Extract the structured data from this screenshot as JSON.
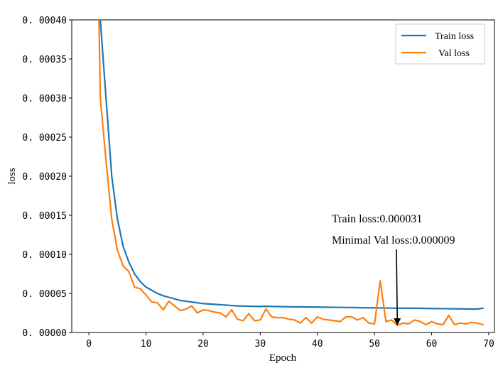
{
  "chart_data": {
    "type": "line",
    "xlabel": "Epoch",
    "ylabel": "loss",
    "xlim": [
      -3,
      71
    ],
    "ylim": [
      0,
      0.0004
    ],
    "x_ticks": [
      0,
      10,
      20,
      30,
      40,
      50,
      60,
      70
    ],
    "x_tick_labels": [
      "0",
      "10",
      "20",
      "30",
      "40",
      "50",
      "60",
      "70"
    ],
    "y_ticks": [
      0,
      5e-05,
      0.0001,
      0.00015,
      0.0002,
      0.00025,
      0.0003,
      0.00035,
      0.0004
    ],
    "y_tick_labels": [
      "0. 00000",
      "0. 00005",
      "0. 00010",
      "0. 00015",
      "0. 00020",
      "0. 00025",
      "0. 00030",
      "0. 00035",
      "0. 00040"
    ],
    "grid": false,
    "legend_position": "top-right",
    "series": [
      {
        "name": "Train loss",
        "color": "#1f77b4",
        "x": [
          1,
          2,
          3,
          4,
          5,
          6,
          7,
          8,
          9,
          10,
          11,
          12,
          13,
          14,
          15,
          16,
          17,
          18,
          19,
          20,
          21,
          22,
          23,
          24,
          25,
          26,
          27,
          28,
          29,
          30,
          31,
          32,
          33,
          34,
          35,
          36,
          37,
          38,
          39,
          40,
          41,
          42,
          43,
          44,
          45,
          46,
          47,
          48,
          49,
          50,
          51,
          52,
          53,
          54,
          55,
          56,
          57,
          58,
          59,
          60,
          61,
          62,
          63,
          64,
          65,
          66,
          67,
          68,
          69
        ],
        "values": [
          0.00075,
          0.0004,
          0.0003,
          0.0002,
          0.000145,
          0.00011,
          9e-05,
          7.5e-05,
          6.5e-05,
          5.8e-05,
          5.4e-05,
          5e-05,
          4.7e-05,
          4.5e-05,
          4.3e-05,
          4.1e-05,
          4e-05,
          3.9e-05,
          3.8e-05,
          3.7e-05,
          3.65e-05,
          3.6e-05,
          3.55e-05,
          3.5e-05,
          3.45e-05,
          3.4e-05,
          3.38e-05,
          3.36e-05,
          3.34e-05,
          3.33e-05,
          3.35e-05,
          3.33e-05,
          3.32e-05,
          3.3e-05,
          3.29e-05,
          3.28e-05,
          3.27e-05,
          3.26e-05,
          3.26e-05,
          3.25e-05,
          3.24e-05,
          3.23e-05,
          3.22e-05,
          3.21e-05,
          3.2e-05,
          3.19e-05,
          3.18e-05,
          3.17e-05,
          3.16e-05,
          3.15e-05,
          3.14e-05,
          3.13e-05,
          3.12e-05,
          3.11e-05,
          3.1e-05,
          3.1e-05,
          3.1e-05,
          3.09e-05,
          3.08e-05,
          3.07e-05,
          3.06e-05,
          3.05e-05,
          3.04e-05,
          3.03e-05,
          3.02e-05,
          3.01e-05,
          3e-05,
          3e-05,
          3.1e-05
        ]
      },
      {
        "name": "Val loss",
        "color": "#ff7f0e",
        "x": [
          1,
          2,
          3,
          4,
          5,
          6,
          7,
          8,
          9,
          10,
          11,
          12,
          13,
          14,
          15,
          16,
          17,
          18,
          19,
          20,
          21,
          22,
          23,
          24,
          25,
          26,
          27,
          28,
          29,
          30,
          31,
          32,
          33,
          34,
          35,
          36,
          37,
          38,
          39,
          40,
          41,
          42,
          43,
          44,
          45,
          46,
          47,
          48,
          49,
          50,
          51,
          52,
          53,
          54,
          55,
          56,
          57,
          58,
          59,
          60,
          61,
          62,
          63,
          64,
          65,
          66,
          67,
          68,
          69
        ],
        "values": [
          0.00072,
          0.0003,
          0.00022,
          0.000145,
          0.000105,
          8.5e-05,
          7.8e-05,
          5.8e-05,
          5.6e-05,
          4.8e-05,
          3.9e-05,
          3.8e-05,
          2.9e-05,
          4e-05,
          3.4e-05,
          2.8e-05,
          3e-05,
          3.4e-05,
          2.5e-05,
          2.9e-05,
          2.8e-05,
          2.6e-05,
          2.5e-05,
          2e-05,
          2.9e-05,
          1.7e-05,
          1.5e-05,
          2.4e-05,
          1.5e-05,
          1.6e-05,
          3e-05,
          2e-05,
          1.9e-05,
          1.9e-05,
          1.7e-05,
          1.6e-05,
          1.2e-05,
          1.9e-05,
          1.2e-05,
          2e-05,
          1.7e-05,
          1.6e-05,
          1.5e-05,
          1.4e-05,
          2e-05,
          2e-05,
          1.6e-05,
          1.9e-05,
          1.2e-05,
          1.1e-05,
          6.6e-05,
          1.4e-05,
          1.6e-05,
          9e-06,
          1.2e-05,
          1.1e-05,
          1.6e-05,
          1.4e-05,
          1e-05,
          1.4e-05,
          1.1e-05,
          1e-05,
          2.2e-05,
          1e-05,
          1.2e-05,
          1.1e-05,
          1.3e-05,
          1.2e-05,
          1e-05
        ]
      }
    ],
    "annotations": {
      "line1": "Train loss:0.000031",
      "line2": "Minimal Val loss:0.000009",
      "arrow_target": {
        "x": 54,
        "y": 9e-06
      }
    }
  }
}
